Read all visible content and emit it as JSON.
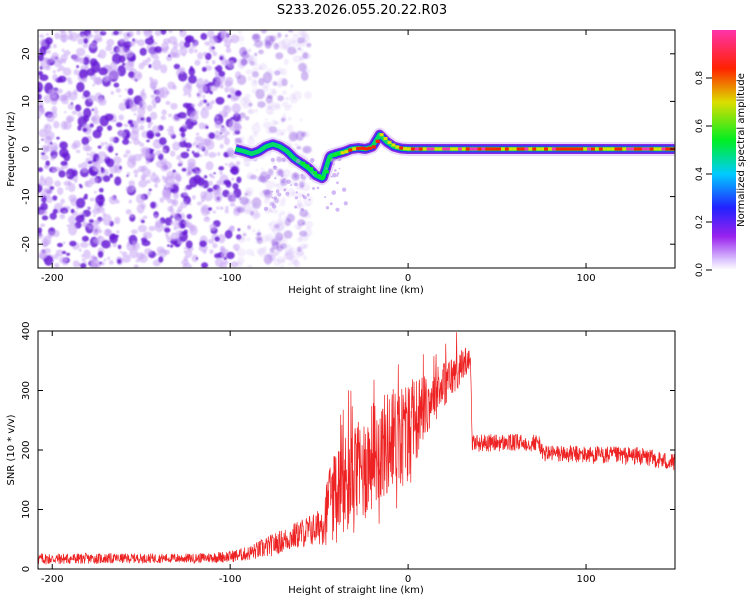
{
  "figure_title": "S233.2026.055.20.22.R03",
  "chart_data": [
    {
      "type": "heatmap",
      "title": "S233.2026.055.20.22.R03",
      "xlabel": "Height of straight line (km)",
      "ylabel": "Frequency (Hz)",
      "xlim": [
        -208,
        150
      ],
      "ylim": [
        -25,
        25
      ],
      "x_ticks": [
        -200,
        -100,
        0,
        100
      ],
      "y_ticks": [
        -20,
        -10,
        0,
        10,
        20
      ],
      "x_tick_labels": [
        "-200",
        "-100",
        "0",
        "100"
      ],
      "y_tick_labels": [
        "-20",
        "-10",
        "0",
        "10",
        "20"
      ],
      "noise_region_x": [
        -208,
        -95
      ],
      "ridge": {
        "x": [
          -97,
          -92,
          -88,
          -84,
          -80,
          -76,
          -72,
          -68,
          -64,
          -60,
          -56,
          -52,
          -48,
          -44,
          -40,
          -36,
          -32,
          -28,
          -24,
          -20,
          -16,
          -12,
          -8,
          -4,
          0,
          150
        ],
        "frequency": [
          0,
          -0.5,
          -1,
          -0.5,
          0.5,
          1,
          0.5,
          -0.5,
          -2,
          -3,
          -4,
          -5.5,
          -6.2,
          -1.5,
          -1,
          -0.6,
          0,
          0.2,
          0,
          0.5,
          3,
          1.5,
          0.5,
          0.1,
          0,
          0
        ],
        "max_amplitude": 0.95
      },
      "colorbar": {
        "label": "Normalized spectral amplitude",
        "range": [
          0,
          1
        ],
        "ticks": [
          0.0,
          0.2,
          0.4,
          0.6,
          0.8
        ],
        "tick_labels": [
          "0.0",
          "0.2",
          "0.4",
          "0.6",
          "0.8"
        ]
      }
    },
    {
      "type": "line",
      "xlabel": "Height of straight line (km)",
      "ylabel": "SNR (10 * v/v)",
      "xlim": [
        -208,
        150
      ],
      "ylim": [
        0,
        400
      ],
      "x_ticks": [
        -200,
        -100,
        0,
        100
      ],
      "y_ticks": [
        0,
        100,
        200,
        300,
        400
      ],
      "x_tick_labels": [
        "-200",
        "-100",
        "0",
        "100"
      ],
      "y_tick_labels": [
        "0",
        "100",
        "200",
        "300",
        "400"
      ],
      "series": [
        {
          "name": "SNR",
          "color": "#ee2222",
          "x": [
            -208,
            -150,
            -120,
            -100,
            -90,
            -80,
            -70,
            -60,
            -50,
            -45,
            -40,
            -35,
            -30,
            -20,
            -10,
            0,
            10,
            20,
            30,
            35,
            36,
            50,
            60,
            74,
            75,
            100,
            130,
            150
          ],
          "values": [
            17,
            18,
            18,
            21,
            26,
            36,
            48,
            60,
            70,
            100,
            120,
            140,
            150,
            190,
            215,
            230,
            275,
            310,
            340,
            360,
            212,
            212,
            212,
            212,
            195,
            192,
            190,
            178
          ],
          "noise_amplitude": [
            10,
            8,
            8,
            10,
            12,
            18,
            20,
            25,
            30,
            60,
            90,
            90,
            90,
            90,
            90,
            90,
            50,
            40,
            30,
            20,
            15,
            15,
            15,
            15,
            15,
            15,
            15,
            15
          ]
        }
      ]
    }
  ],
  "colors": {
    "signal_line": "#ee2222",
    "noise_speckle": "#7722dd",
    "axis": "#000000"
  }
}
